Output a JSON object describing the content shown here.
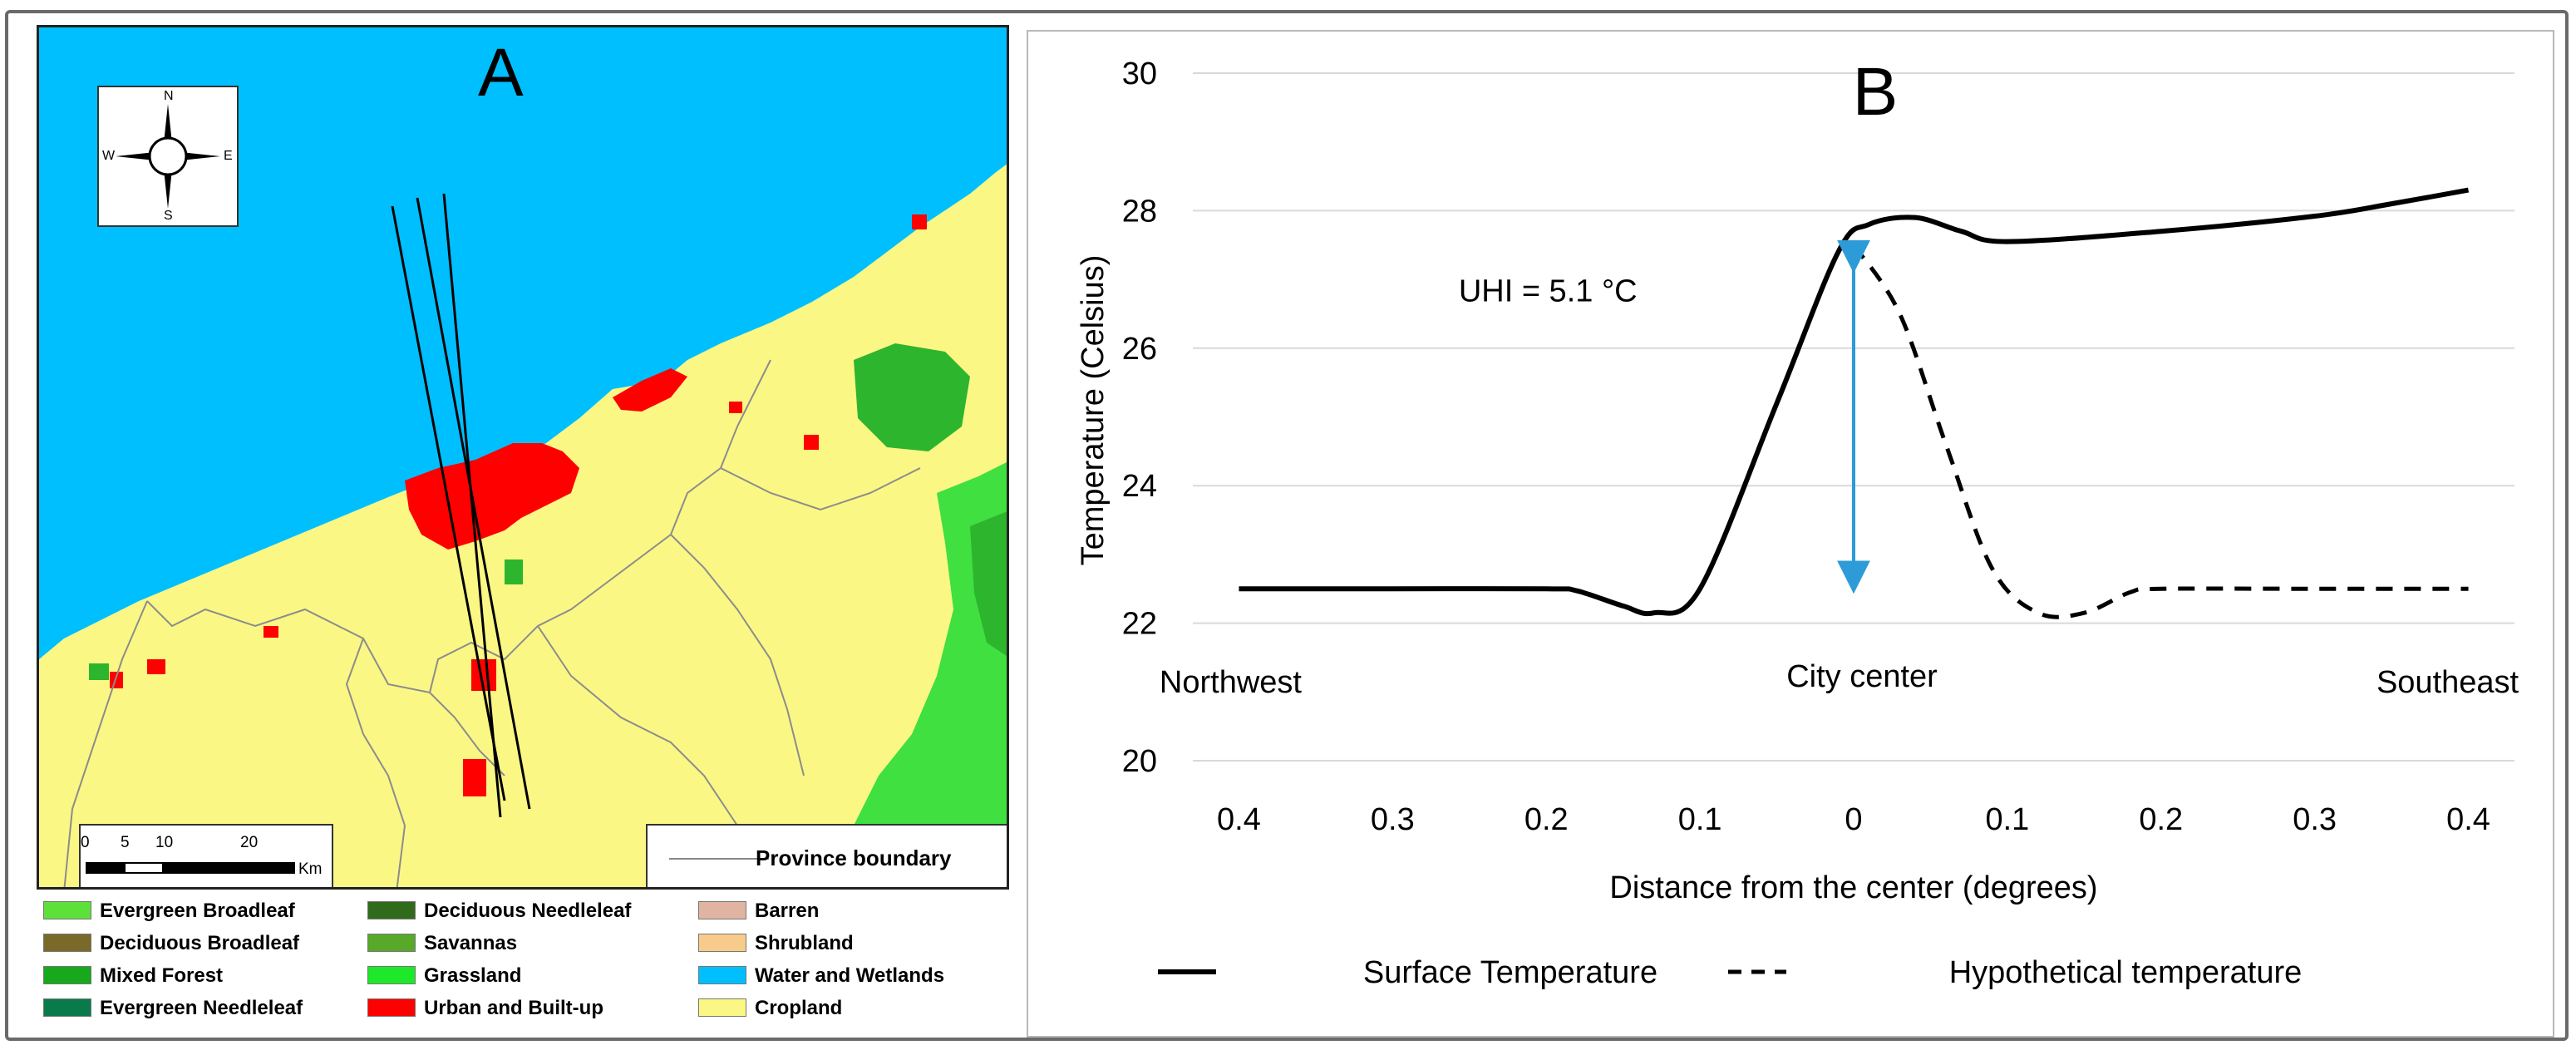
{
  "panel_a": {
    "letter": "A",
    "compass": {
      "n": "N",
      "s": "S",
      "e": "E",
      "w": "W"
    },
    "scale_bar": {
      "ticks": [
        "0",
        "5",
        "10",
        "20"
      ],
      "unit": "Km"
    },
    "province_legend": "Province boundary",
    "land_cover_legend": [
      {
        "label": "Evergreen Broadleaf",
        "color": "#5ee03a"
      },
      {
        "label": "Deciduous Broadleaf",
        "color": "#7a6a2a"
      },
      {
        "label": "Mixed Forest",
        "color": "#17a81c"
      },
      {
        "label": "Evergreen Needleleaf",
        "color": "#0a7a4a"
      },
      {
        "label": "Deciduous Needleleaf",
        "color": "#2f6b1a"
      },
      {
        "label": "Savannas",
        "color": "#58a82a"
      },
      {
        "label": "Grassland",
        "color": "#1ee82a"
      },
      {
        "label": "Urban and Built-up",
        "color": "#ff0000"
      },
      {
        "label": "Barren",
        "color": "#e0b4a0"
      },
      {
        "label": "Shrubland",
        "color": "#f7cc8a"
      },
      {
        "label": "Water and Wetlands",
        "color": "#00bfff"
      },
      {
        "label": "Cropland",
        "color": "#fbf785"
      }
    ],
    "colors": {
      "water": "#00bfff",
      "cropland": "#fbf785",
      "urban": "#ff0000",
      "forest": "#2db52d",
      "boundary": "#8c8c8c"
    }
  },
  "chart_data": {
    "type": "line",
    "panel_letter": "B",
    "title": "",
    "xlabel": "Distance from the center (degrees)",
    "ylabel": "Temperature  (Celsius)",
    "x": [
      -0.4,
      -0.3,
      -0.2,
      -0.15,
      -0.13,
      -0.1,
      -0.05,
      0,
      0.03,
      0.06,
      0.1,
      0.2,
      0.3,
      0.35,
      0.4
    ],
    "x_tick_labels": [
      "0.4",
      "0.3",
      "0.2",
      "0.1",
      "0",
      "0.1",
      "0.2",
      "0.3",
      "0.4"
    ],
    "x_ticks": [
      -0.4,
      -0.3,
      -0.2,
      -0.1,
      0,
      0.1,
      0.2,
      0.3,
      0.4
    ],
    "xlim": [
      -0.43,
      0.43
    ],
    "ylim": [
      20,
      30
    ],
    "y_ticks": [
      20,
      22,
      24,
      26,
      28,
      30
    ],
    "grid": true,
    "series": [
      {
        "name": "Surface Temperature",
        "style": "solid",
        "x": [
          -0.4,
          -0.3,
          -0.2,
          -0.18,
          -0.15,
          -0.13,
          -0.1,
          -0.05,
          -0.01,
          0.01,
          0.04,
          0.07,
          0.1,
          0.2,
          0.3,
          0.35,
          0.4
        ],
        "values": [
          22.5,
          22.5,
          22.5,
          22.47,
          22.25,
          22.15,
          22.5,
          25.2,
          27.4,
          27.8,
          27.9,
          27.7,
          27.55,
          27.7,
          27.92,
          28.1,
          28.3
        ]
      },
      {
        "name": "Hypothetical temperature",
        "style": "dashed",
        "x": [
          0,
          0.03,
          0.06,
          0.09,
          0.12,
          0.15,
          0.18,
          0.2,
          0.3,
          0.4
        ],
        "values": [
          27.5,
          26.5,
          24.6,
          22.8,
          22.15,
          22.15,
          22.45,
          22.5,
          22.5,
          22.5
        ]
      }
    ],
    "annotations": [
      {
        "text": "UHI = 5.1 °C",
        "x": -0.18,
        "y": 26.8
      },
      {
        "text": "Northwest",
        "x": -0.4,
        "y": 21
      },
      {
        "text": "City center",
        "x": 0,
        "y": 21.1
      },
      {
        "text": "Southeast",
        "x": 0.4,
        "y": 21
      }
    ],
    "uhi_arrow": {
      "x": 0,
      "from": 27.5,
      "to": 22.5,
      "color": "#2d9bd8"
    },
    "legend": [
      "Surface Temperature",
      "Hypothetical temperature"
    ]
  }
}
